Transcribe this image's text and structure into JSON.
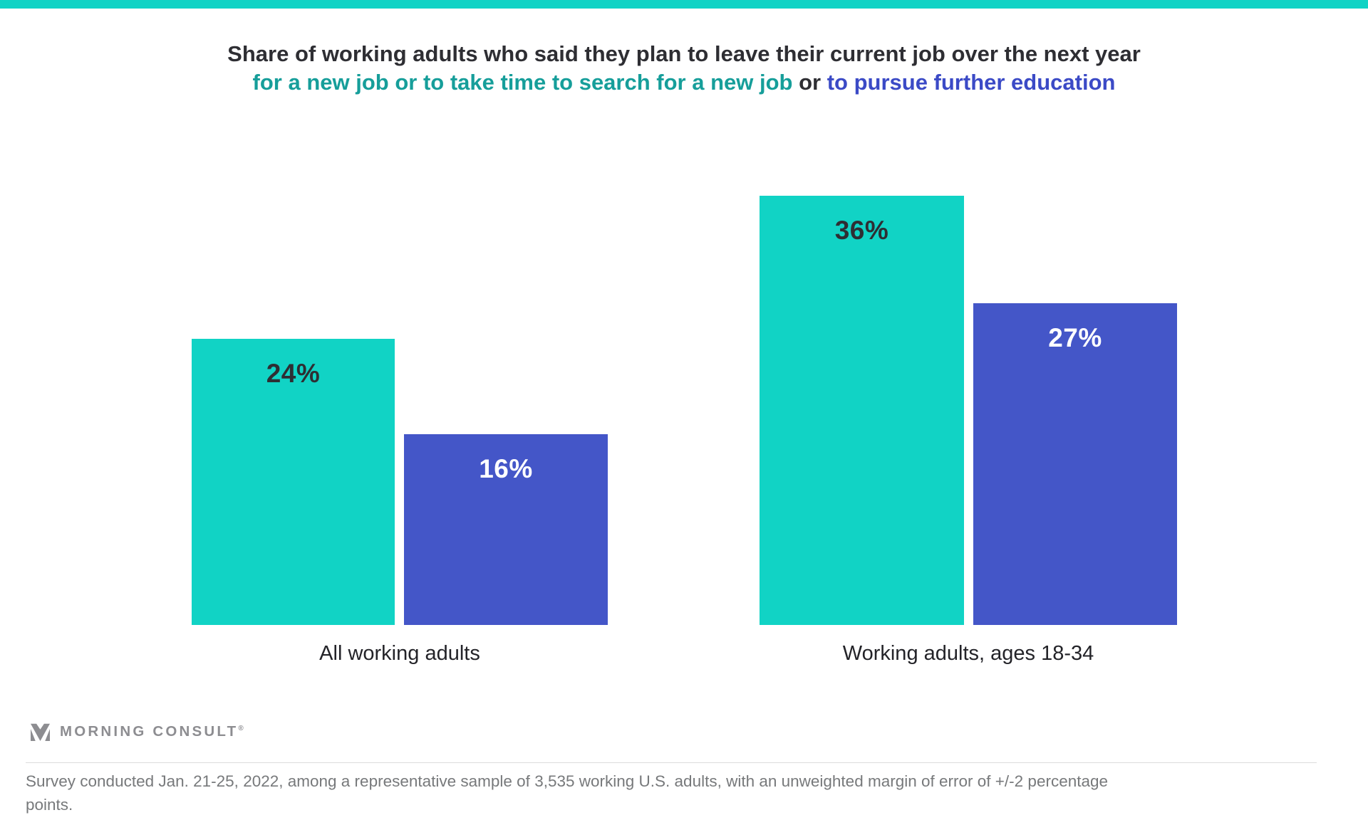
{
  "page": {
    "background": "#ffffff",
    "top_strip_color": "#11d3c5"
  },
  "colors": {
    "teal_bar": "#11d3c5",
    "blue_bar": "#4456c8",
    "title_dark": "#2e2e33",
    "title_teal": "#169e9a",
    "title_blue": "#3b4ac6",
    "value_label_on_teal": "#2e2e33",
    "value_label_on_blue": "#ffffff",
    "category_label": "#232328",
    "logo_gray": "#8d8d91",
    "footer_gray": "#77797b",
    "divider_gray": "#dcdcdc"
  },
  "title": {
    "line1": "Share of working adults who said they plan to leave their current job over the next year",
    "line2_part1": "for a new job or to take time to search for a new job",
    "line2_part2": " or ",
    "line2_part3": "to pursue further education"
  },
  "chart_data": {
    "type": "bar",
    "categories": [
      "All working adults",
      "Working adults, ages 18-34"
    ],
    "series": [
      {
        "name": "for a new job or to take time to search for a new job",
        "color": "#11d3c5",
        "values": [
          24,
          36
        ],
        "value_labels": [
          "24%",
          "36%"
        ],
        "label_color": "#2e2e33"
      },
      {
        "name": "to pursue further education",
        "color": "#4456c8",
        "values": [
          16,
          27
        ],
        "value_labels": [
          "16%",
          "27%"
        ],
        "label_color": "#ffffff"
      }
    ],
    "unit": "%",
    "ylim": [
      0,
      36
    ],
    "grid": false,
    "axes_shown": false,
    "legend_position": "encoded-in-title-colors",
    "value_labels_position": "inside-top"
  },
  "logo": {
    "name": "MORNING CONSULT",
    "registered_mark": "®"
  },
  "footer": {
    "lines": [
      "Survey conducted Jan. 21-25, 2022, among a representative sample of 3,535 working U.S. adults, with an unweighted margin of error of +/-2 percentage",
      "points."
    ]
  }
}
